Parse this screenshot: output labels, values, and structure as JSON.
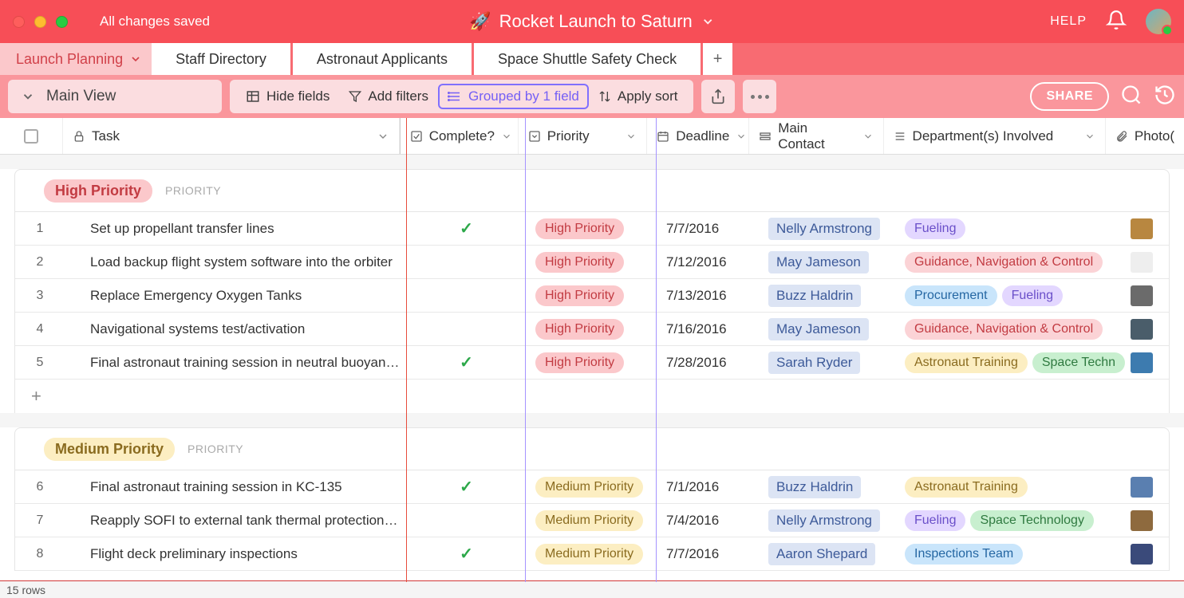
{
  "colors": {
    "header_bg": "#f74e57",
    "tab_bg": "#f86b72",
    "toolbar_bg": "#fa969c",
    "toolbar_panel": "#fbdde0",
    "active_tab_bg": "#fbc8cb",
    "active_tab_text": "#d14049",
    "grouped_border": "#8070ff",
    "checkmark": "#2ca849",
    "red_vline": "#e74c3c",
    "purple_vline": "#a593ff",
    "pill_high_bg": "#fbc8cb",
    "pill_high_text": "#c23b42",
    "pill_med_bg": "#fceec2",
    "pill_med_text": "#8a6b1f",
    "pill_fueling_bg": "#e3d7ff",
    "pill_fueling_text": "#6a4fc9",
    "pill_gnc_bg": "#fbd3d6",
    "pill_gnc_text": "#c23b42",
    "pill_proc_bg": "#c9e5fb",
    "pill_proc_text": "#2567a3",
    "pill_astro_bg": "#fceec2",
    "pill_astro_text": "#8a6b1f",
    "pill_space_bg": "#c8efcf",
    "pill_space_text": "#2f7a40",
    "pill_insp_bg": "#c9e5fb",
    "pill_insp_text": "#2567a3",
    "contact_bg": "#dce4f4",
    "contact_text": "#3d5a99"
  },
  "topbar": {
    "save_status": "All changes saved",
    "emoji": "🚀",
    "title": "Rocket Launch to Saturn",
    "help": "HELP"
  },
  "tabs": {
    "active": "Launch Planning",
    "others": [
      "Staff Directory",
      "Astronaut Applicants",
      "Space Shuttle Safety Check"
    ]
  },
  "toolbar": {
    "view": "Main View",
    "hide_fields": "Hide fields",
    "add_filters": "Add filters",
    "grouped": "Grouped by 1 field",
    "apply_sort": "Apply sort",
    "share": "SHARE"
  },
  "columns": {
    "task": "Task",
    "complete": "Complete?",
    "priority": "Priority",
    "deadline": "Deadline",
    "contact": "Main Contact",
    "dept": "Department(s) Involved",
    "photo": "Photo("
  },
  "groups": [
    {
      "label": "High Priority",
      "sub": "PRIORITY",
      "pill_bg": "#fbc8cb",
      "pill_text": "#c23b42",
      "rows": [
        {
          "n": "1",
          "task": "Set up propellant transfer lines",
          "complete": true,
          "priority": "High Priority",
          "pbg": "#fbc8cb",
          "ptx": "#c23b42",
          "deadline": "7/7/2016",
          "contact": "Nelly Armstrong",
          "dept": [
            {
              "t": "Fueling",
              "bg": "#e3d7ff",
              "tx": "#6a4fc9"
            }
          ],
          "thumb": "#b88740"
        },
        {
          "n": "2",
          "task": "Load backup flight system software into the orbiter",
          "complete": false,
          "priority": "High Priority",
          "pbg": "#fbc8cb",
          "ptx": "#c23b42",
          "deadline": "7/12/2016",
          "contact": "May Jameson",
          "dept": [
            {
              "t": "Guidance, Navigation & Control",
              "bg": "#fbd3d6",
              "tx": "#c23b42"
            }
          ],
          "thumb": "#eeeeee"
        },
        {
          "n": "3",
          "task": "Replace Emergency Oxygen Tanks",
          "complete": false,
          "priority": "High Priority",
          "pbg": "#fbc8cb",
          "ptx": "#c23b42",
          "deadline": "7/13/2016",
          "contact": "Buzz Haldrin",
          "dept": [
            {
              "t": "Procurement",
              "bg": "#c9e5fb",
              "tx": "#2567a3"
            },
            {
              "t": "Fueling",
              "bg": "#e3d7ff",
              "tx": "#6a4fc9"
            }
          ],
          "thumb": "#6b6b6b"
        },
        {
          "n": "4",
          "task": "Navigational systems test/activation",
          "complete": false,
          "priority": "High Priority",
          "pbg": "#fbc8cb",
          "ptx": "#c23b42",
          "deadline": "7/16/2016",
          "contact": "May Jameson",
          "dept": [
            {
              "t": "Guidance, Navigation & Control",
              "bg": "#fbd3d6",
              "tx": "#c23b42"
            }
          ],
          "thumb": "#4a5d6a"
        },
        {
          "n": "5",
          "task": "Final astronaut training session in neutral buoyan…",
          "complete": true,
          "priority": "High Priority",
          "pbg": "#fbc8cb",
          "ptx": "#c23b42",
          "deadline": "7/28/2016",
          "contact": "Sarah Ryder",
          "dept": [
            {
              "t": "Astronaut Training",
              "bg": "#fceec2",
              "tx": "#8a6b1f"
            },
            {
              "t": "Space Techn",
              "bg": "#c8efcf",
              "tx": "#2f7a40"
            }
          ],
          "thumb": "#3d7baf"
        }
      ]
    },
    {
      "label": "Medium Priority",
      "sub": "PRIORITY",
      "pill_bg": "#fceec2",
      "pill_text": "#8a6b1f",
      "rows": [
        {
          "n": "6",
          "task": "Final astronaut training session in KC-135",
          "complete": true,
          "priority": "Medium Priority",
          "pbg": "#fceec2",
          "ptx": "#8a6b1f",
          "deadline": "7/1/2016",
          "contact": "Buzz Haldrin",
          "dept": [
            {
              "t": "Astronaut Training",
              "bg": "#fceec2",
              "tx": "#8a6b1f"
            }
          ],
          "thumb": "#5a7fb0"
        },
        {
          "n": "7",
          "task": "Reapply SOFI to external tank thermal protection…",
          "complete": false,
          "priority": "Medium Priority",
          "pbg": "#fceec2",
          "ptx": "#8a6b1f",
          "deadline": "7/4/2016",
          "contact": "Nelly Armstrong",
          "dept": [
            {
              "t": "Fueling",
              "bg": "#e3d7ff",
              "tx": "#6a4fc9"
            },
            {
              "t": "Space Technology",
              "bg": "#c8efcf",
              "tx": "#2f7a40"
            }
          ],
          "thumb": "#8e6a3e"
        },
        {
          "n": "8",
          "task": "Flight deck preliminary inspections",
          "complete": true,
          "priority": "Medium Priority",
          "pbg": "#fceec2",
          "ptx": "#8a6b1f",
          "deadline": "7/7/2016",
          "contact": "Aaron Shepard",
          "dept": [
            {
              "t": "Inspections Team",
              "bg": "#c9e5fb",
              "tx": "#2567a3"
            }
          ],
          "thumb": "#3a4a7a"
        }
      ]
    }
  ],
  "footer": {
    "rows": "15 rows"
  }
}
